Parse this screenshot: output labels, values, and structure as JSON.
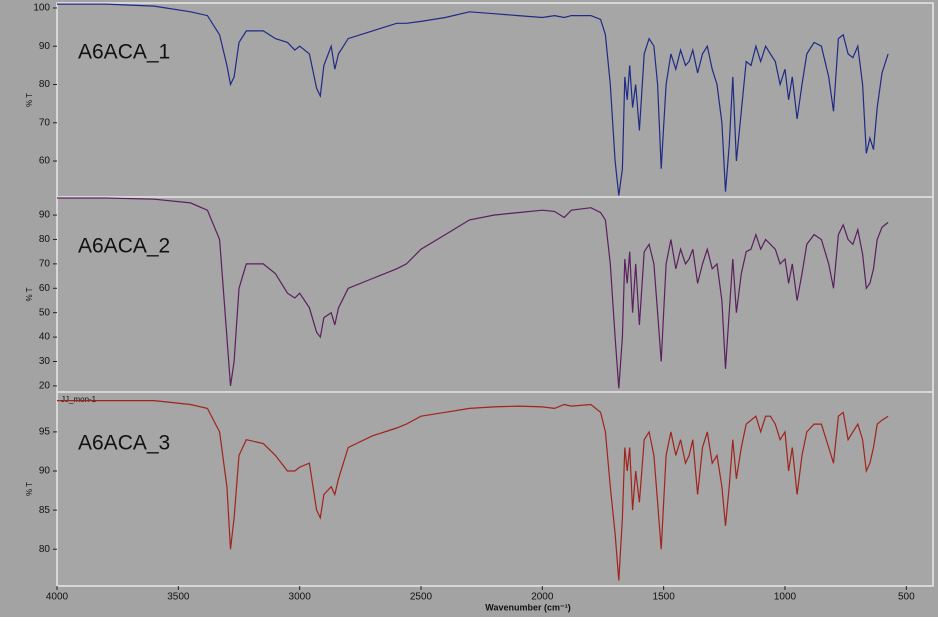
{
  "chart_data": [
    {
      "type": "line",
      "annotation": "A6ACA_1",
      "ylabel": "% T",
      "color": "#1f2a86",
      "xlim": [
        4000,
        390
      ],
      "ylim": [
        50.6,
        101.3
      ],
      "yticks": [
        60,
        70,
        80,
        90,
        100
      ],
      "x": [
        4000,
        3800,
        3600,
        3450,
        3380,
        3330,
        3300,
        3285,
        3270,
        3250,
        3220,
        3150,
        3100,
        3050,
        3020,
        3000,
        2960,
        2930,
        2915,
        2900,
        2870,
        2855,
        2840,
        2800,
        2700,
        2600,
        2560,
        2500,
        2400,
        2300,
        2200,
        2100,
        2000,
        1950,
        1910,
        1880,
        1800,
        1760,
        1740,
        1720,
        1700,
        1685,
        1670,
        1660,
        1650,
        1640,
        1628,
        1615,
        1600,
        1580,
        1560,
        1540,
        1525,
        1510,
        1490,
        1470,
        1450,
        1430,
        1410,
        1395,
        1380,
        1360,
        1340,
        1320,
        1300,
        1280,
        1260,
        1245,
        1230,
        1215,
        1200,
        1180,
        1160,
        1140,
        1120,
        1100,
        1080,
        1060,
        1040,
        1020,
        1000,
        985,
        970,
        950,
        930,
        910,
        880,
        850,
        820,
        800,
        780,
        760,
        740,
        720,
        700,
        680,
        665,
        650,
        635,
        620,
        600,
        575
      ],
      "values": [
        101,
        101,
        100.5,
        99,
        98,
        93,
        85,
        80,
        82,
        91,
        94,
        94,
        92,
        91,
        89,
        90,
        88,
        79,
        77,
        85,
        90,
        84,
        88,
        92,
        94,
        96,
        96,
        96.5,
        97.5,
        99,
        98.5,
        98,
        97.5,
        98,
        97.5,
        98,
        98,
        97,
        93,
        80,
        60,
        51,
        58,
        82,
        76,
        85,
        74,
        80,
        68,
        88,
        92,
        90,
        80,
        58,
        80,
        88,
        84,
        89,
        85,
        86,
        89,
        83,
        88,
        90,
        84,
        80,
        70,
        52,
        64,
        82,
        60,
        73,
        86,
        85,
        90,
        86,
        90,
        88,
        86,
        80,
        84,
        76,
        82,
        71,
        80,
        88,
        91,
        90,
        82,
        73,
        92,
        93,
        88,
        87,
        90,
        80,
        62,
        66,
        63,
        74,
        83,
        88
      ]
    },
    {
      "type": "line",
      "annotation": "A6ACA_2",
      "ylabel": "% T",
      "color": "#5a1f5e",
      "xlim": [
        4000,
        390
      ],
      "ylim": [
        17.5,
        97.4
      ],
      "yticks": [
        20,
        30,
        40,
        50,
        60,
        70,
        80,
        90
      ],
      "x": [
        4000,
        3800,
        3600,
        3450,
        3380,
        3330,
        3300,
        3285,
        3270,
        3250,
        3220,
        3150,
        3100,
        3050,
        3020,
        3000,
        2960,
        2930,
        2915,
        2900,
        2870,
        2855,
        2840,
        2800,
        2700,
        2600,
        2560,
        2500,
        2400,
        2300,
        2200,
        2100,
        2000,
        1950,
        1910,
        1880,
        1800,
        1760,
        1740,
        1720,
        1700,
        1685,
        1670,
        1660,
        1650,
        1640,
        1628,
        1615,
        1600,
        1580,
        1560,
        1540,
        1525,
        1510,
        1490,
        1470,
        1450,
        1430,
        1410,
        1395,
        1380,
        1360,
        1340,
        1320,
        1300,
        1280,
        1260,
        1245,
        1230,
        1215,
        1200,
        1180,
        1160,
        1140,
        1120,
        1100,
        1080,
        1060,
        1040,
        1020,
        1000,
        985,
        970,
        950,
        930,
        910,
        880,
        850,
        820,
        800,
        780,
        760,
        740,
        720,
        700,
        680,
        665,
        650,
        635,
        620,
        600,
        575
      ],
      "values": [
        97,
        97,
        96.5,
        95,
        92,
        80,
        40,
        20,
        30,
        60,
        70,
        70,
        66,
        58,
        56,
        58,
        52,
        42,
        40,
        48,
        50,
        45,
        52,
        60,
        64,
        68,
        70,
        76,
        82,
        88,
        90,
        91,
        92,
        91.5,
        89,
        92,
        93,
        91,
        88,
        70,
        40,
        19,
        40,
        72,
        62,
        75,
        50,
        70,
        45,
        75,
        78,
        70,
        50,
        30,
        70,
        80,
        68,
        76,
        70,
        72,
        76,
        62,
        70,
        76,
        68,
        70,
        55,
        27,
        50,
        72,
        50,
        66,
        75,
        76,
        82,
        76,
        80,
        78,
        76,
        70,
        72,
        62,
        70,
        55,
        66,
        78,
        82,
        80,
        70,
        60,
        82,
        86,
        80,
        78,
        84,
        74,
        60,
        62,
        68,
        80,
        85,
        87
      ]
    },
    {
      "type": "line",
      "annotation": "A6ACA_3",
      "note": "JJ_mon-1",
      "ylabel": "% T",
      "xlabel": "Wavenumber (cm⁻¹)",
      "color": "#a0231c",
      "xlim": [
        4000,
        390
      ],
      "ylim": [
        75.3,
        100.1
      ],
      "yticks": [
        80,
        85,
        90,
        95
      ],
      "xticks": [
        4000,
        3500,
        3000,
        2500,
        2000,
        1500,
        1000,
        500
      ],
      "x": [
        4000,
        3800,
        3600,
        3450,
        3380,
        3330,
        3300,
        3285,
        3270,
        3250,
        3220,
        3150,
        3100,
        3050,
        3020,
        3000,
        2960,
        2930,
        2915,
        2900,
        2870,
        2855,
        2840,
        2800,
        2700,
        2600,
        2560,
        2500,
        2400,
        2300,
        2200,
        2100,
        2000,
        1950,
        1910,
        1880,
        1800,
        1760,
        1740,
        1720,
        1700,
        1685,
        1670,
        1660,
        1650,
        1640,
        1628,
        1615,
        1600,
        1580,
        1560,
        1540,
        1525,
        1510,
        1490,
        1470,
        1450,
        1430,
        1410,
        1395,
        1380,
        1360,
        1340,
        1320,
        1300,
        1280,
        1260,
        1245,
        1230,
        1215,
        1200,
        1180,
        1160,
        1140,
        1120,
        1100,
        1080,
        1060,
        1040,
        1020,
        1000,
        985,
        970,
        950,
        930,
        910,
        880,
        850,
        820,
        800,
        780,
        760,
        740,
        720,
        700,
        680,
        665,
        650,
        635,
        620,
        600,
        575
      ],
      "values": [
        99,
        99,
        99,
        98.5,
        98,
        95,
        88,
        80,
        84,
        92,
        94,
        93.5,
        92,
        90,
        90,
        90.5,
        91,
        85,
        84,
        87,
        88,
        87,
        89,
        93,
        94.5,
        95.5,
        96,
        97,
        97.5,
        98,
        98.2,
        98.3,
        98.2,
        98,
        98.5,
        98.3,
        98.5,
        97.5,
        95,
        88,
        82,
        76,
        84,
        93,
        90,
        93,
        85,
        90,
        86,
        94,
        95,
        92,
        86,
        80,
        92,
        95,
        92,
        94,
        91,
        92,
        94,
        87,
        93,
        95,
        91,
        92,
        88,
        83,
        88,
        94,
        89,
        93,
        96,
        96.5,
        97,
        95,
        97,
        97,
        96,
        94,
        95,
        90,
        93,
        87,
        92,
        95,
        96,
        96,
        93,
        91,
        97,
        97.5,
        94,
        95,
        96,
        94,
        90,
        91,
        93,
        96,
        96.5,
        97
      ]
    }
  ]
}
